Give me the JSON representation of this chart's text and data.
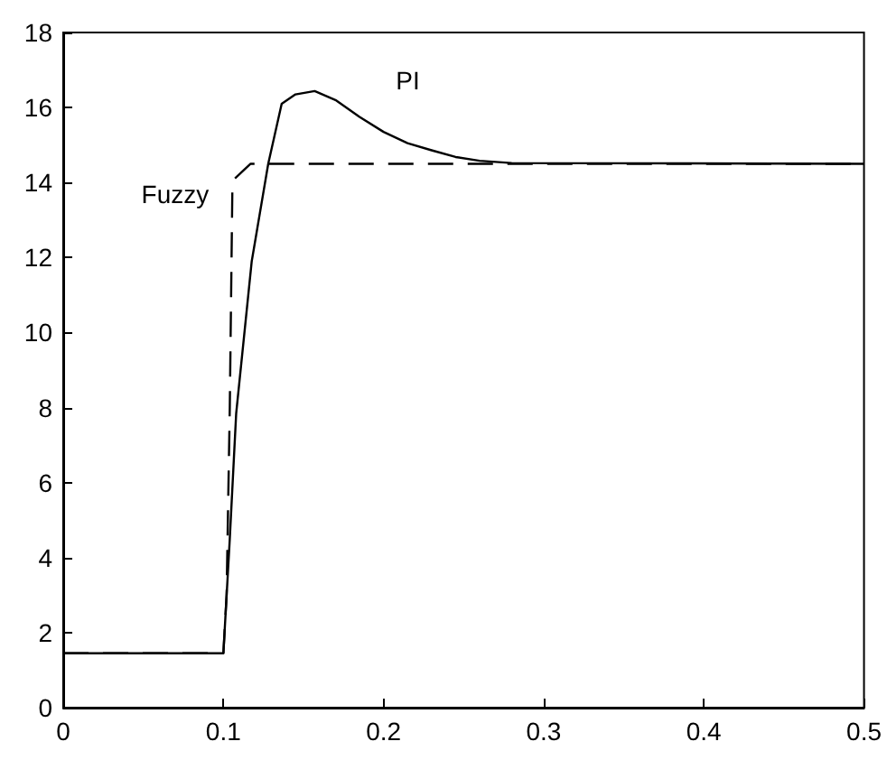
{
  "chart_data": {
    "type": "line",
    "xlim": [
      0,
      0.5
    ],
    "xticks": [
      0,
      0.1,
      0.2,
      0.3,
      0.4,
      0.5
    ],
    "ylim": [
      0,
      18
    ],
    "yticks": [
      0,
      2,
      4,
      6,
      8,
      10,
      12,
      14,
      16,
      18
    ],
    "grid": false,
    "legend": false,
    "marker": "none",
    "series": [
      {
        "name": "PI",
        "color": "#000000",
        "line_style": "solid",
        "x": [
          0,
          0.1,
          0.104,
          0.108,
          0.1177,
          0.128,
          0.1364,
          0.145,
          0.157,
          0.17,
          0.185,
          0.2,
          0.215,
          0.23,
          0.245,
          0.26,
          0.28,
          0.5
        ],
        "values": [
          1.45,
          1.45,
          4.5,
          7.85,
          11.9,
          14.5,
          16.1,
          16.35,
          16.44,
          16.2,
          15.75,
          15.35,
          15.05,
          14.86,
          14.68,
          14.58,
          14.52,
          14.5
        ]
      },
      {
        "name": "Fuzzy",
        "color": "#000000",
        "line_style": "dashed",
        "x": [
          0,
          0.1,
          0.102,
          0.104,
          0.1056,
          0.107,
          0.117,
          0.5
        ],
        "values": [
          1.45,
          1.45,
          3,
          8,
          13.8,
          14.1,
          14.5,
          14.5
        ]
      }
    ]
  }
}
